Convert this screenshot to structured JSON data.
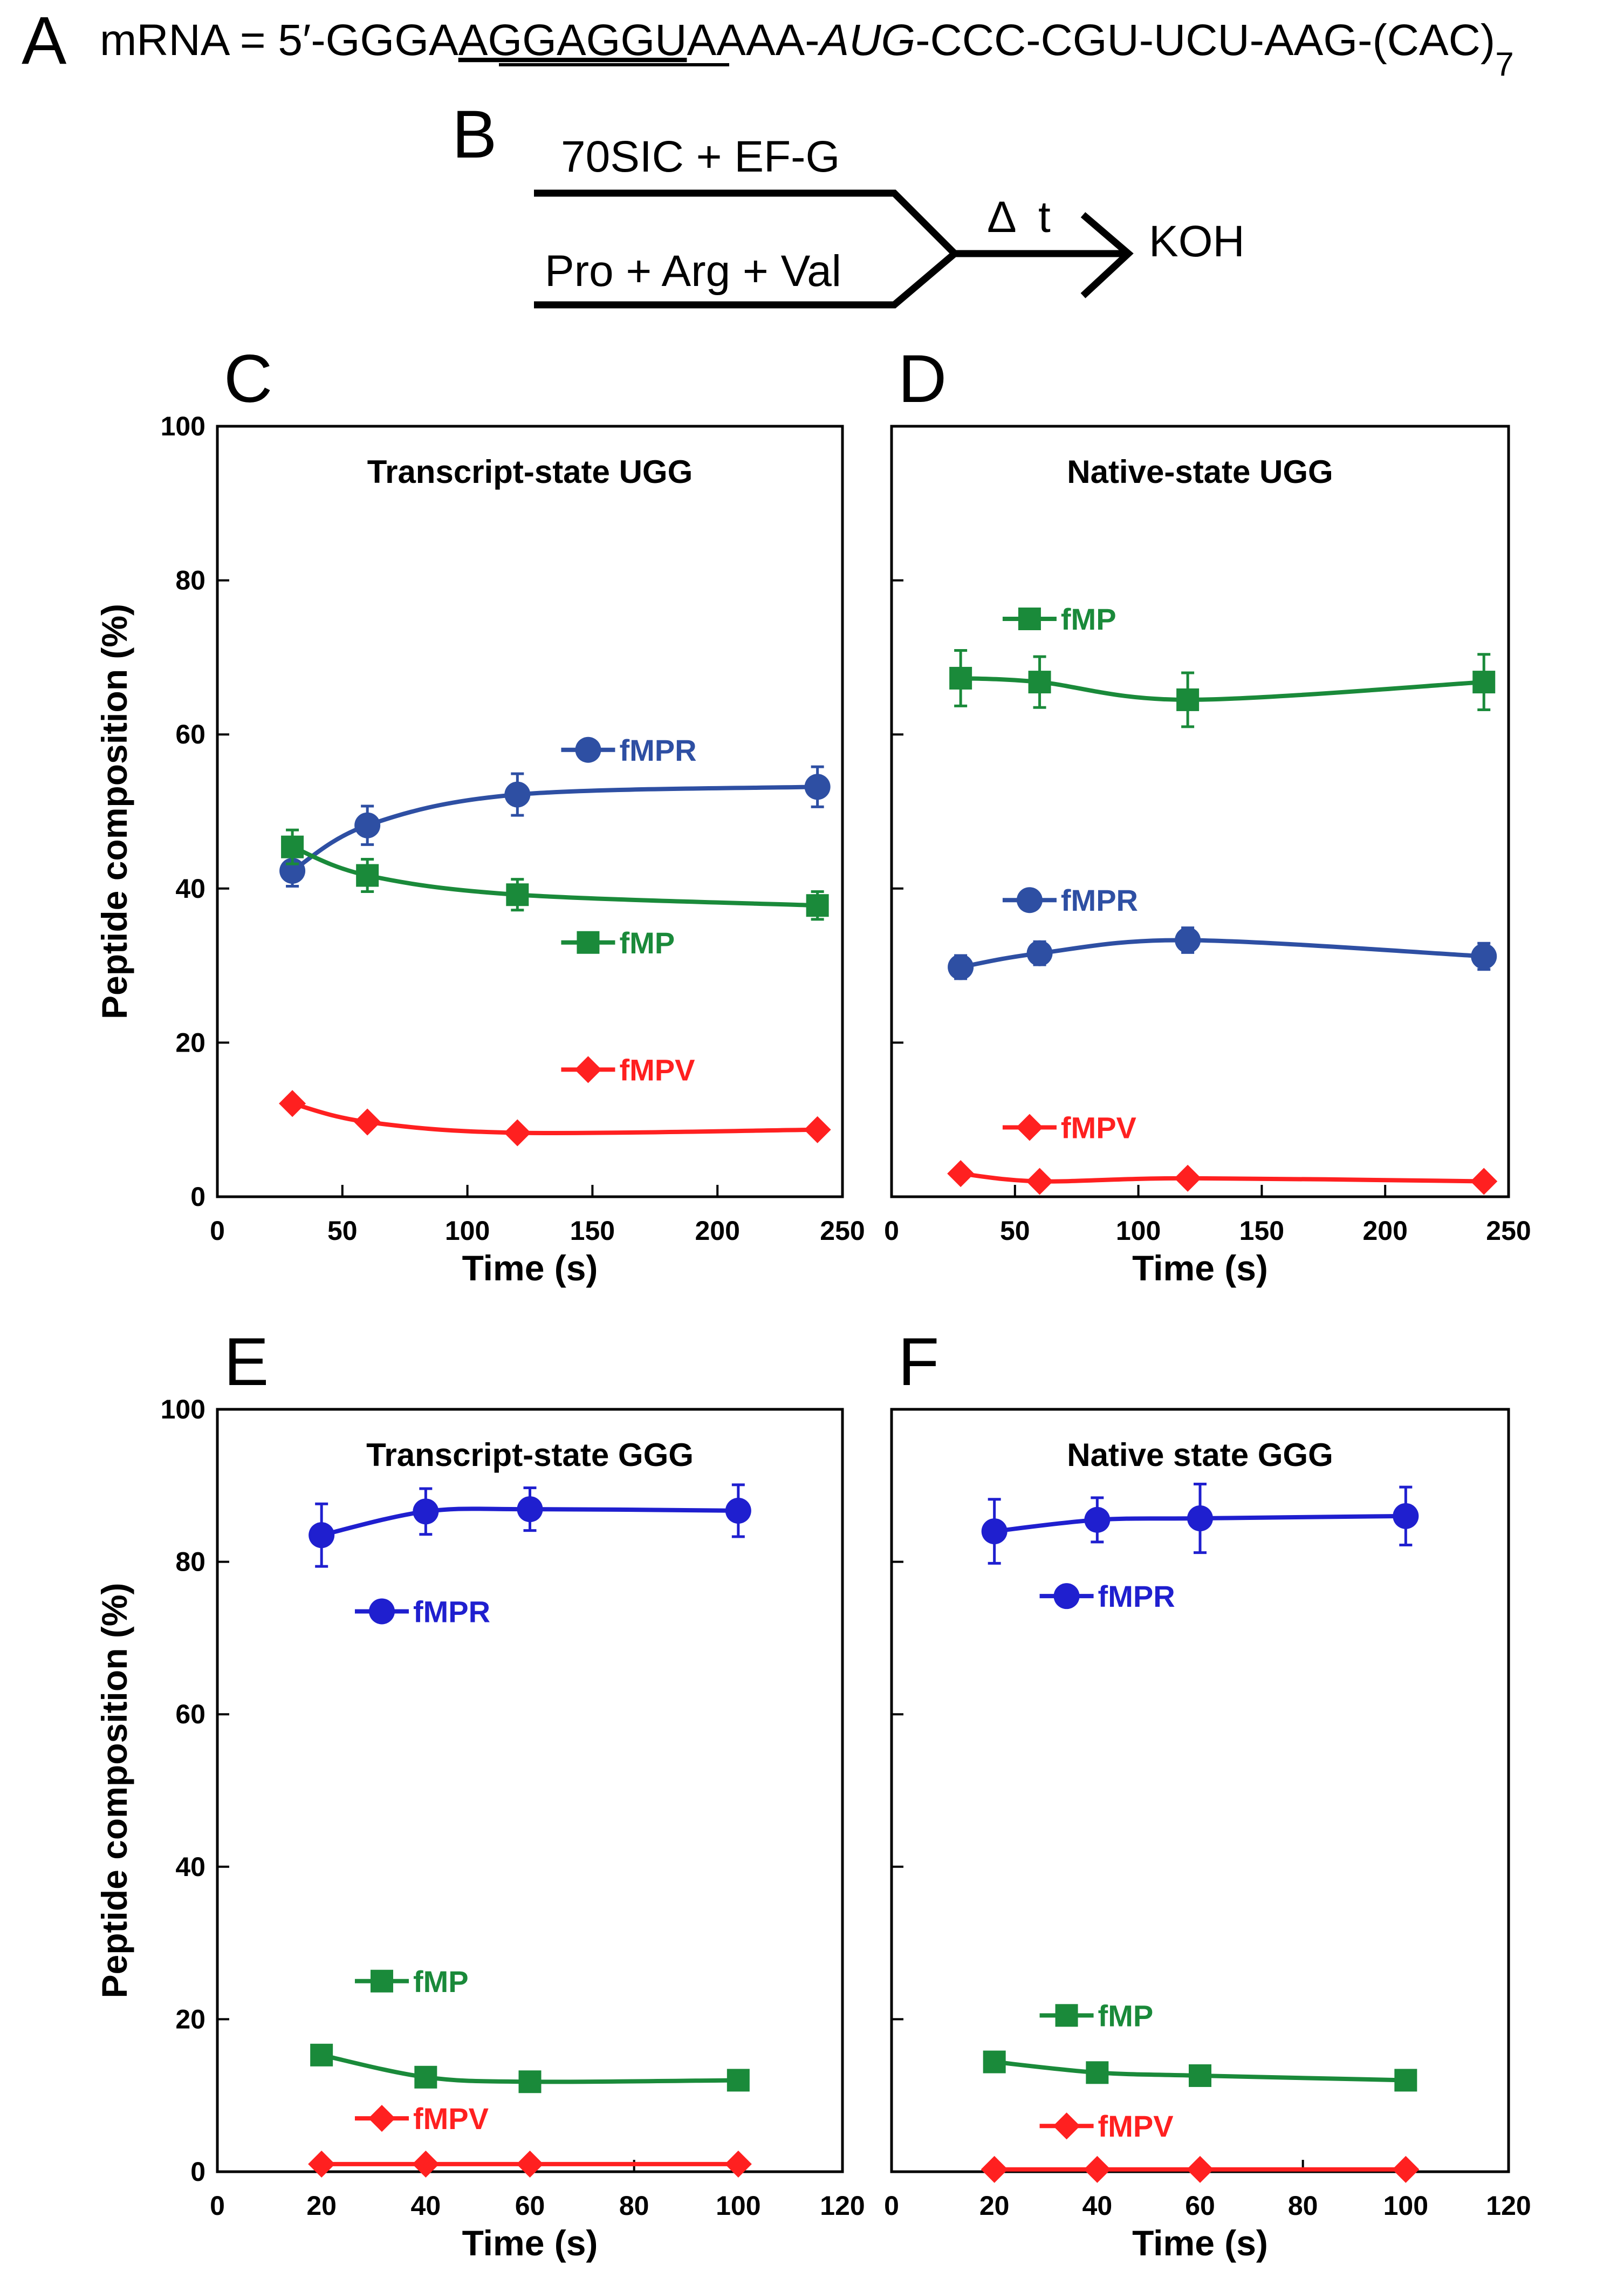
{
  "figure": {
    "panel_a": {
      "letter": "A",
      "prefix": "mRNA = 5′-GGGA",
      "sd": "AGGAGGU",
      "mid": "AAAA-",
      "start_codon": "AUG",
      "rest": "-CCC-CGU-UCU-AAG-(CAC)",
      "subscript": "7"
    },
    "panel_b": {
      "letter": "B",
      "top_reagents": "70SIC + EF-G",
      "bottom_reagents": "Pro + Arg + Val",
      "delta": "Δ",
      "time_symbol": "t",
      "quench": "KOH"
    }
  },
  "colors": {
    "fMPR_cd": "#2e4fa3",
    "fMPR_ef": "#1f1fcf",
    "fMP": "#1a8a3a",
    "fMPV": "#ff2020"
  },
  "chart_data": [
    {
      "id": "C",
      "letter": "C",
      "type": "line",
      "title": "Transcript-state UGG",
      "xlabel": "Time (s)",
      "ylabel": "Peptide composition (%)",
      "xlim": [
        0,
        250
      ],
      "ylim": [
        0,
        100
      ],
      "xticks": [
        0,
        50,
        100,
        150,
        200,
        250
      ],
      "yticks": [
        0,
        20,
        40,
        60,
        80,
        100
      ],
      "show_ytick_labels": true,
      "series": [
        {
          "name": "fMPR",
          "color": "#2e4fa3",
          "marker": "circle",
          "x": [
            30,
            60,
            120,
            240
          ],
          "y": [
            42.3,
            48.2,
            52.2,
            53.2
          ],
          "err": [
            2.0,
            2.5,
            2.7,
            2.6
          ],
          "label_at": [
            0.55,
            58
          ]
        },
        {
          "name": "fMP",
          "color": "#1a8a3a",
          "marker": "square",
          "x": [
            30,
            60,
            120,
            240
          ],
          "y": [
            45.4,
            41.7,
            39.2,
            37.8
          ],
          "err": [
            2.2,
            2.1,
            2.0,
            1.8
          ],
          "label_at": [
            0.55,
            33
          ]
        },
        {
          "name": "fMPV",
          "color": "#ff2020",
          "marker": "diamond",
          "x": [
            30,
            60,
            120,
            240
          ],
          "y": [
            12.1,
            9.7,
            8.3,
            8.7
          ],
          "err": [
            0,
            0,
            0,
            0
          ],
          "label_at": [
            0.55,
            16.5
          ]
        }
      ]
    },
    {
      "id": "D",
      "letter": "D",
      "type": "line",
      "title": "Native-state UGG",
      "xlabel": "Time (s)",
      "ylabel": "",
      "xlim": [
        0,
        250
      ],
      "ylim": [
        0,
        100
      ],
      "xticks": [
        0,
        50,
        100,
        150,
        200,
        250
      ],
      "yticks": [
        0,
        20,
        40,
        60,
        80,
        100
      ],
      "show_ytick_labels": false,
      "series": [
        {
          "name": "fMP",
          "color": "#1a8a3a",
          "marker": "square",
          "x": [
            28,
            60,
            120,
            240
          ],
          "y": [
            67.3,
            66.8,
            64.5,
            66.8
          ],
          "err": [
            3.6,
            3.3,
            3.5,
            3.6
          ],
          "label_at": [
            0.18,
            75
          ]
        },
        {
          "name": "fMPR",
          "color": "#2e4fa3",
          "marker": "circle",
          "x": [
            28,
            60,
            120,
            240
          ],
          "y": [
            29.8,
            31.6,
            33.3,
            31.2
          ],
          "err": [
            1.5,
            1.5,
            1.6,
            1.7
          ],
          "label_at": [
            0.18,
            38.5
          ]
        },
        {
          "name": "fMPV",
          "color": "#ff2020",
          "marker": "diamond",
          "x": [
            28,
            60,
            120,
            240
          ],
          "y": [
            3.0,
            2.0,
            2.4,
            2.0
          ],
          "err": [
            0,
            0,
            0,
            0
          ],
          "label_at": [
            0.18,
            9
          ]
        }
      ]
    },
    {
      "id": "E",
      "letter": "E",
      "type": "line",
      "title": "Transcript-state GGG",
      "xlabel": "Time (s)",
      "ylabel": "Peptide composition (%)",
      "xlim": [
        0,
        120
      ],
      "ylim": [
        0,
        100
      ],
      "xticks": [
        0,
        20,
        40,
        60,
        80,
        100,
        120
      ],
      "yticks": [
        0,
        20,
        40,
        60,
        80,
        100
      ],
      "show_ytick_labels": true,
      "series": [
        {
          "name": "fMPR",
          "color": "#1f1fcf",
          "marker": "circle",
          "x": [
            20,
            40,
            60,
            100
          ],
          "y": [
            83.5,
            86.6,
            86.9,
            86.7
          ],
          "err": [
            4.1,
            3.0,
            2.8,
            3.4
          ],
          "label_at": [
            0.22,
            73.5
          ]
        },
        {
          "name": "fMP",
          "color": "#1a8a3a",
          "marker": "square",
          "x": [
            20,
            40,
            60,
            100
          ],
          "y": [
            15.3,
            12.4,
            11.8,
            12.0
          ],
          "err": [
            0,
            0,
            0,
            0
          ],
          "label_at": [
            0.22,
            25
          ]
        },
        {
          "name": "fMPV",
          "color": "#ff2020",
          "marker": "diamond",
          "x": [
            20,
            40,
            60,
            100
          ],
          "y": [
            1.0,
            1.0,
            1.0,
            1.0
          ],
          "err": [
            0,
            0,
            0,
            0
          ],
          "label_at": [
            0.22,
            7
          ]
        }
      ]
    },
    {
      "id": "F",
      "letter": "F",
      "type": "line",
      "title": "Native state GGG",
      "xlabel": "Time (s)",
      "ylabel": "",
      "xlim": [
        0,
        120
      ],
      "ylim": [
        0,
        100
      ],
      "xticks": [
        0,
        20,
        40,
        60,
        80,
        100,
        120
      ],
      "yticks": [
        0,
        20,
        40,
        60,
        80,
        100
      ],
      "show_ytick_labels": false,
      "series": [
        {
          "name": "fMPR",
          "color": "#1f1fcf",
          "marker": "circle",
          "x": [
            20,
            40,
            60,
            100
          ],
          "y": [
            84.0,
            85.5,
            85.7,
            86.0
          ],
          "err": [
            4.2,
            2.9,
            4.5,
            3.8
          ],
          "label_at": [
            0.24,
            75.5
          ]
        },
        {
          "name": "fMP",
          "color": "#1a8a3a",
          "marker": "square",
          "x": [
            20,
            40,
            60,
            100
          ],
          "y": [
            14.4,
            13.0,
            12.6,
            12.0
          ],
          "err": [
            0,
            0,
            0,
            0
          ],
          "label_at": [
            0.24,
            20.5
          ]
        },
        {
          "name": "fMPV",
          "color": "#ff2020",
          "marker": "diamond",
          "x": [
            20,
            40,
            60,
            100
          ],
          "y": [
            0.3,
            0.3,
            0.3,
            0.3
          ],
          "err": [
            0,
            0,
            0,
            0
          ],
          "label_at": [
            0.24,
            6
          ]
        }
      ]
    }
  ]
}
